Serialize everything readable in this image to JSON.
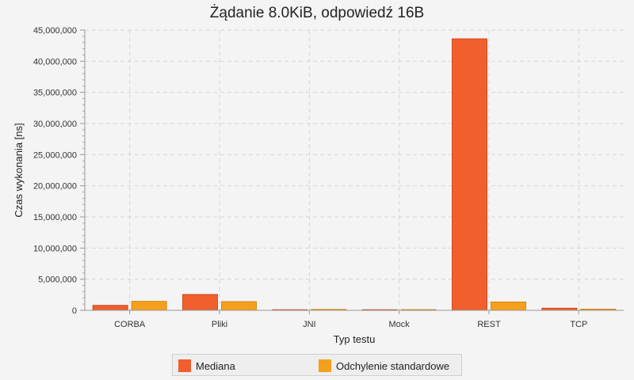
{
  "chart_data": {
    "type": "bar",
    "title": "Żądanie 8.0KiB, odpowiedź 16B",
    "xlabel": "Typ testu",
    "ylabel": "Czas wykonania [ns]",
    "categories": [
      "CORBA",
      "Pliki",
      "JNI",
      "Mock",
      "REST",
      "TCP"
    ],
    "series": [
      {
        "name": "Mediana",
        "color": "#f05f2d",
        "values": [
          800000,
          2550000,
          20000,
          10000,
          43600000,
          350000
        ]
      },
      {
        "name": "Odchylenie standardowe",
        "color": "#f5a01c",
        "values": [
          1450000,
          1400000,
          150000,
          120000,
          1350000,
          200000
        ]
      }
    ],
    "ylim": [
      0,
      45000000
    ],
    "yticks": [
      0,
      5000000,
      10000000,
      15000000,
      20000000,
      25000000,
      30000000,
      35000000,
      40000000,
      45000000
    ],
    "ytick_labels": [
      "0",
      "5,000,000",
      "10,000,000",
      "15,000,000",
      "20,000,000",
      "25,000,000",
      "30,000,000",
      "35,000,000",
      "40,000,000",
      "45,000,000"
    ],
    "grid": true,
    "legend_position": "bottom"
  }
}
